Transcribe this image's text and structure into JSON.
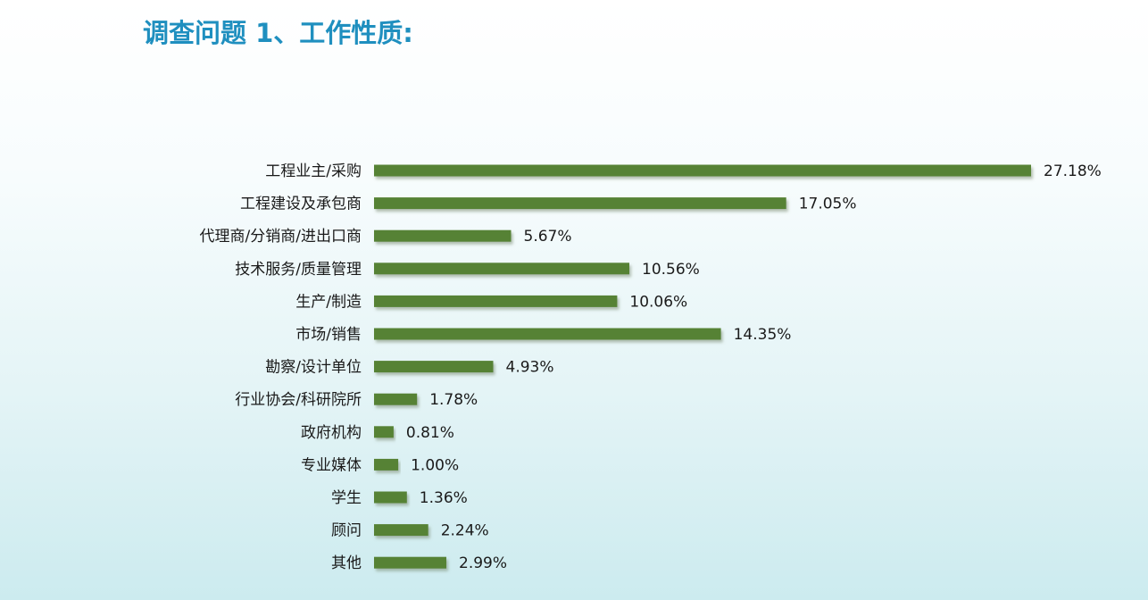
{
  "page": {
    "title": "调查问题 1、工作性质:"
  },
  "colors": {
    "title": "#1f8fbf",
    "bar": "#568235",
    "bar_shadow": "#a6b59a"
  },
  "chart_data": {
    "type": "bar",
    "orientation": "horizontal",
    "title": "",
    "xlabel": "",
    "ylabel": "",
    "unit": "%",
    "grid": false,
    "legend": "none",
    "xlim": [
      0,
      27.18
    ],
    "categories": [
      "工程业主/采购",
      "工程建设及承包商",
      "代理商/分销商/进出口商",
      "技术服务/质量管理",
      "生产/制造",
      "市场/销售",
      "勘察/设计单位",
      "行业协会/科研院所",
      "政府机构",
      "专业媒体",
      "学生",
      "顾问",
      "其他"
    ],
    "values": [
      27.18,
      17.05,
      5.67,
      10.56,
      10.06,
      14.35,
      4.93,
      1.78,
      0.81,
      1.0,
      1.36,
      2.24,
      2.99
    ],
    "value_labels": [
      "27.18%",
      "17.05%",
      "5.67%",
      "10.56%",
      "10.06%",
      "14.35%",
      "4.93%",
      "1.78%",
      "0.81%",
      "1.00%",
      "1.36%",
      "2.24%",
      "2.99%"
    ]
  }
}
